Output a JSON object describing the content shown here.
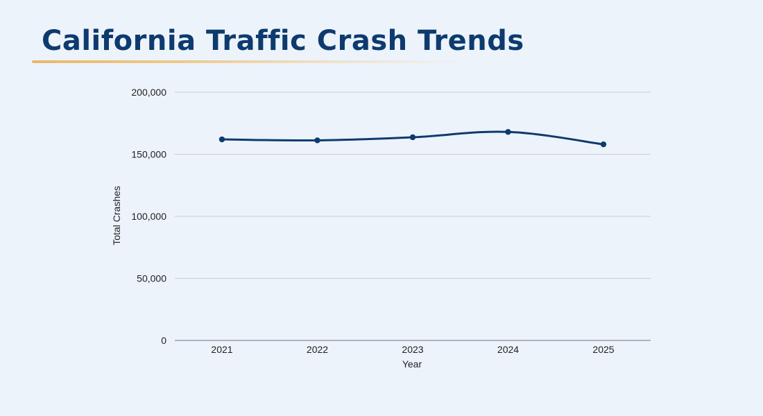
{
  "chart_data": {
    "type": "line",
    "title": "California Traffic Crash Trends",
    "xlabel": "Year",
    "ylabel": "Total Crashes",
    "categories": [
      "2021",
      "2022",
      "2023",
      "2024",
      "2025"
    ],
    "series": [
      {
        "values": [
          162000,
          161200,
          163700,
          168000,
          158000
        ]
      }
    ],
    "ylim": [
      0,
      200000
    ],
    "yticks": [
      0,
      50000,
      100000,
      150000,
      200000
    ],
    "ytick_labels": [
      "0",
      "50,000",
      "100,000",
      "150,000",
      "200,000"
    ],
    "grid": true,
    "legend": "none",
    "colors": {
      "line": "#0d3b6e",
      "grid": "#c9ccd6",
      "title": "#0d3b6e",
      "underline": "#e8b86a",
      "background": "#edf3fb"
    }
  }
}
